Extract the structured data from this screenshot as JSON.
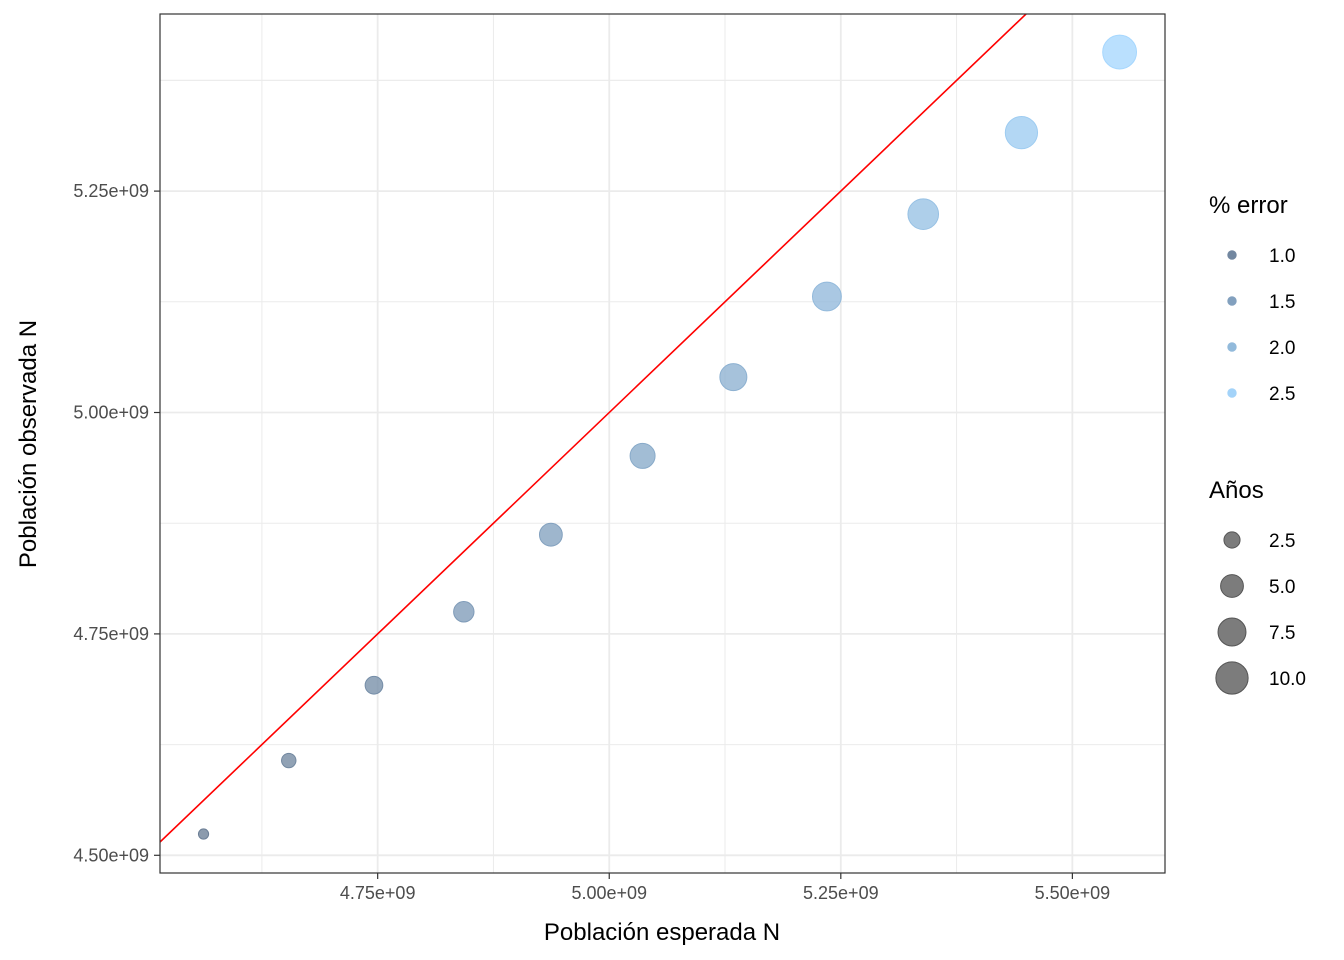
{
  "chart_data": {
    "type": "scatter",
    "xlabel": "Población esperada N",
    "ylabel": "Población observada N",
    "xlim": [
      4515000000.0,
      5600000000.0
    ],
    "ylim": [
      4480000000.0,
      5450000000.0
    ],
    "x_ticks": [
      4750000000.0,
      5000000000.0,
      5250000000.0,
      5500000000.0
    ],
    "x_tick_labels": [
      "4.75e+09",
      "5.00e+09",
      "5.25e+09",
      "5.50e+09"
    ],
    "y_ticks": [
      4500000000.0,
      4750000000.0,
      5000000000.0,
      5250000000.0
    ],
    "y_tick_labels": [
      "4.50e+09",
      "4.75e+09",
      "5.00e+09",
      "5.25e+09"
    ],
    "grid": true,
    "reference_line": {
      "slope": 1,
      "intercept": 0,
      "color": "#ff0000"
    },
    "points": [
      {
        "x": 4562000000.0,
        "y": 4524000000.0,
        "error": 0.83,
        "years": 1
      },
      {
        "x": 4654000000.0,
        "y": 4607000000.0,
        "error": 1.01,
        "years": 2
      },
      {
        "x": 4746000000.0,
        "y": 4692000000.0,
        "error": 1.14,
        "years": 3
      },
      {
        "x": 4843000000.0,
        "y": 4775000000.0,
        "error": 1.4,
        "years": 4
      },
      {
        "x": 4937000000.0,
        "y": 4862000000.0,
        "error": 1.52,
        "years": 5
      },
      {
        "x": 5036000000.0,
        "y": 4951000000.0,
        "error": 1.69,
        "years": 6
      },
      {
        "x": 5134000000.0,
        "y": 5040000000.0,
        "error": 1.83,
        "years": 7
      },
      {
        "x": 5235000000.0,
        "y": 5131000000.0,
        "error": 1.99,
        "years": 8
      },
      {
        "x": 5339000000.0,
        "y": 5224000000.0,
        "error": 2.15,
        "years": 9
      },
      {
        "x": 5445000000.0,
        "y": 5316000000.0,
        "error": 2.37,
        "years": 10
      },
      {
        "x": 5551000000.0,
        "y": 5407000000.0,
        "error": 2.59,
        "years": 11
      }
    ],
    "legend_error": {
      "title": "% error",
      "labels": [
        "1.0",
        "1.5",
        "2.0",
        "2.5"
      ],
      "values": [
        1.0,
        1.5,
        2.0,
        2.5
      ],
      "placement": "right"
    },
    "legend_years": {
      "title": "Años",
      "labels": [
        "2.5",
        "5.0",
        "7.5",
        "10.0"
      ],
      "values": [
        2.5,
        5.0,
        7.5,
        10.0
      ],
      "placement": "right"
    },
    "colors": {
      "low": "#6b7d94",
      "high": "#a6d8ff",
      "line": "#ff0000",
      "panel_border": "#333333",
      "grid": "#ebebeb",
      "size_legend": "#6e6e6e"
    }
  }
}
